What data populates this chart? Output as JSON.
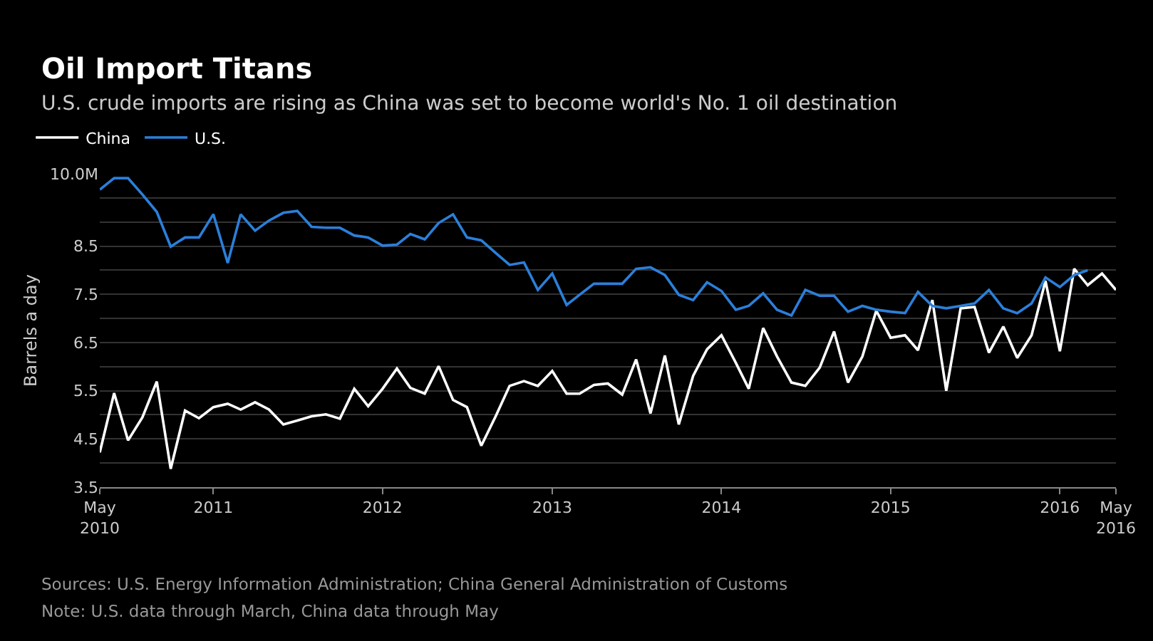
{
  "chart_data": {
    "type": "line",
    "title": "Oil Import Titans",
    "subtitle": "U.S. crude imports are rising as China was set to become world's No. 1 oil destination",
    "ylabel": "Barrels a day",
    "annotations": [
      "Sources: U.S. Energy Information Administration; China General Administration of Customs",
      "Note: U.S. data through March, China data through May"
    ],
    "x": [
      "2010-05",
      "2010-06",
      "2010-07",
      "2010-08",
      "2010-09",
      "2010-10",
      "2010-11",
      "2010-12",
      "2011-01",
      "2011-02",
      "2011-03",
      "2011-04",
      "2011-05",
      "2011-06",
      "2011-07",
      "2011-08",
      "2011-09",
      "2011-10",
      "2011-11",
      "2011-12",
      "2012-01",
      "2012-02",
      "2012-03",
      "2012-04",
      "2012-05",
      "2012-06",
      "2012-07",
      "2012-08",
      "2012-09",
      "2012-10",
      "2012-11",
      "2012-12",
      "2013-01",
      "2013-02",
      "2013-03",
      "2013-04",
      "2013-05",
      "2013-06",
      "2013-07",
      "2013-08",
      "2013-09",
      "2013-10",
      "2013-11",
      "2013-12",
      "2014-01",
      "2014-02",
      "2014-03",
      "2014-04",
      "2014-05",
      "2014-06",
      "2014-07",
      "2014-08",
      "2014-09",
      "2014-10",
      "2014-11",
      "2014-12",
      "2015-01",
      "2015-02",
      "2015-03",
      "2015-04",
      "2015-05",
      "2015-06",
      "2015-07",
      "2015-08",
      "2015-09",
      "2015-10",
      "2015-11",
      "2015-12",
      "2016-01",
      "2016-02",
      "2016-03",
      "2016-04",
      "2016-05"
    ],
    "series": [
      {
        "name": "China",
        "color": "#ffffff",
        "values": [
          4.22,
          5.45,
          4.47,
          4.95,
          5.69,
          3.88,
          5.09,
          4.93,
          5.16,
          5.23,
          5.11,
          5.26,
          5.11,
          4.8,
          4.88,
          4.97,
          5.01,
          4.92,
          5.54,
          5.18,
          5.54,
          5.96,
          5.56,
          5.44,
          6.01,
          5.31,
          5.16,
          4.36,
          4.97,
          5.6,
          5.7,
          5.6,
          5.91,
          5.44,
          5.44,
          5.62,
          5.65,
          5.42,
          6.15,
          5.03,
          6.23,
          4.8,
          5.81,
          6.36,
          6.65,
          6.08,
          5.54,
          6.8,
          6.21,
          5.67,
          5.6,
          5.98,
          6.73,
          5.67,
          6.21,
          7.16,
          6.6,
          6.65,
          6.34,
          7.38,
          5.5,
          7.21,
          7.24,
          6.29,
          6.83,
          6.18,
          6.65,
          7.78,
          6.32,
          8.03,
          7.69,
          7.93,
          7.59
        ]
      },
      {
        "name": "U.S.",
        "color": "#2b7fd9",
        "values": [
          9.67,
          9.91,
          9.91,
          9.57,
          9.21,
          8.49,
          8.68,
          8.68,
          9.16,
          8.15,
          9.16,
          8.82,
          9.03,
          9.19,
          9.23,
          8.9,
          8.88,
          8.88,
          8.72,
          8.68,
          8.51,
          8.53,
          8.75,
          8.64,
          8.98,
          9.16,
          8.68,
          8.62,
          8.36,
          8.11,
          8.16,
          7.59,
          7.93,
          7.28,
          7.49,
          7.72,
          7.72,
          7.72,
          8.03,
          8.06,
          7.9,
          7.49,
          7.38,
          7.75,
          7.57,
          7.18,
          7.26,
          7.52,
          7.18,
          7.06,
          7.59,
          7.47,
          7.47,
          7.14,
          7.26,
          7.18,
          7.14,
          7.11,
          7.55,
          7.26,
          7.21,
          7.26,
          7.31,
          7.59,
          7.21,
          7.11,
          7.31,
          7.85,
          7.65,
          7.9,
          8.0,
          null,
          null
        ]
      }
    ],
    "xlim": [
      "2010-05",
      "2016-05"
    ],
    "xticks": [
      {
        "value": "2010-05",
        "label": "May\n2010"
      },
      {
        "value": "2011-01",
        "label": "2011"
      },
      {
        "value": "2012-01",
        "label": "2012"
      },
      {
        "value": "2013-01",
        "label": "2013"
      },
      {
        "value": "2014-01",
        "label": "2014"
      },
      {
        "value": "2015-01",
        "label": "2015"
      },
      {
        "value": "2016-01",
        "label": "2016"
      },
      {
        "value": "2016-05",
        "label": "May\n2016"
      }
    ],
    "ylim": [
      3.5,
      10.0
    ],
    "yticks": [
      3.5,
      {
        "value": 4.0,
        "label": null
      },
      4.5,
      {
        "value": 5.0,
        "label": null
      },
      5.5,
      {
        "value": 6.0,
        "label": null
      },
      6.5,
      {
        "value": 7.0,
        "label": null
      },
      7.5,
      {
        "value": 8.0,
        "label": null
      },
      8.5,
      {
        "value": 9.0,
        "label": null
      },
      {
        "value": 9.5,
        "label": null
      },
      {
        "value": 10.0,
        "label": "10.0M"
      }
    ],
    "grid": "y",
    "legend": "top left",
    "marker": "none",
    "line_style": "solid"
  }
}
